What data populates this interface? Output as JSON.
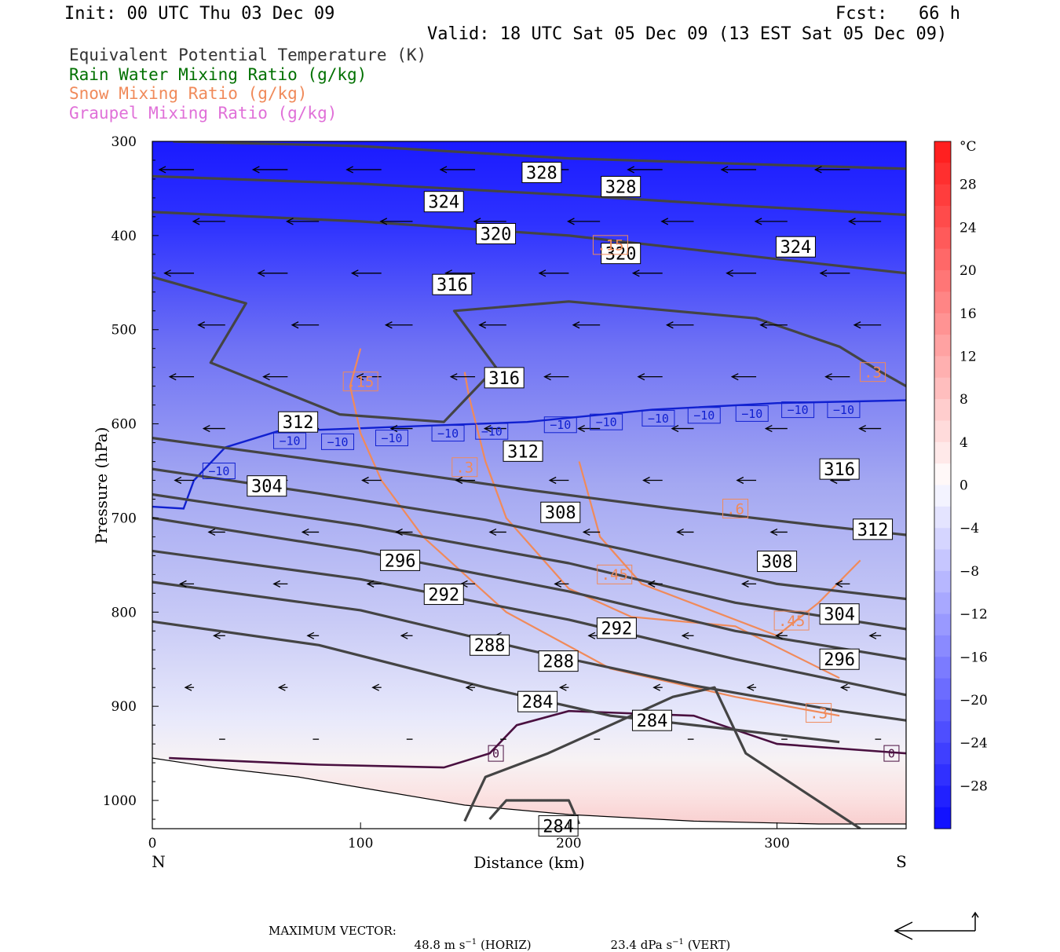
{
  "header": {
    "init": "Init: 00 UTC Thu 03 Dec 09",
    "fcst": "Fcst:   66 h",
    "valid": "Valid: 18 UTC Sat 05 Dec 09 (13 EST Sat 05 Dec 09)"
  },
  "legend": [
    {
      "label": "Equivalent Potential Temperature (K)",
      "color": "#333333"
    },
    {
      "label": "Rain Water Mixing Ratio (g/kg)",
      "color": "#007000"
    },
    {
      "label": "Snow Mixing Ratio (g/kg)",
      "color": "#f08a5a"
    },
    {
      "label": "Graupel Mixing Ratio (g/kg)",
      "color": "#e070d8"
    }
  ],
  "chart_data": {
    "type": "cross-section",
    "xlabel": "Distance (km)",
    "ylabel": "Pressure (hPa)",
    "xlim": [
      0,
      362
    ],
    "ylim": [
      300,
      1030
    ],
    "x_ticks": [
      0,
      100,
      200,
      300
    ],
    "y_ticks": [
      300,
      400,
      500,
      600,
      700,
      800,
      900,
      1000
    ],
    "x_end_labels": {
      "left": "N",
      "right": "S"
    },
    "colorbar": {
      "unit": "°C",
      "range": [
        -32,
        32
      ],
      "tick_labels": [
        28,
        24,
        20,
        16,
        12,
        8,
        4,
        0,
        -4,
        -8,
        -12,
        -16,
        -20,
        -24,
        -28
      ]
    },
    "theta_e": {
      "color": "#444444",
      "contours": [
        {
          "value": 328,
          "points": [
            [
              10,
              300
            ],
            [
              100,
              305
            ],
            [
              200,
              318
            ],
            [
              300,
              325
            ],
            [
              362,
              329
            ]
          ]
        },
        {
          "value": 324,
          "points": [
            [
              0,
              337
            ],
            [
              100,
              345
            ],
            [
              200,
              357
            ],
            [
              280,
              368
            ],
            [
              362,
              378
            ]
          ]
        },
        {
          "value": 320,
          "points": [
            [
              0,
              375
            ],
            [
              100,
              385
            ],
            [
              200,
              400
            ],
            [
              300,
              425
            ],
            [
              362,
              440
            ]
          ]
        },
        {
          "value": 316,
          "points": [
            [
              0,
              444
            ],
            [
              45,
              472
            ],
            [
              28,
              535
            ],
            [
              90,
              590
            ],
            [
              140,
              598
            ],
            [
              165,
              540
            ],
            [
              145,
              480
            ],
            [
              200,
              470
            ],
            [
              290,
              488
            ],
            [
              330,
              518
            ],
            [
              350,
              545
            ],
            [
              362,
              560
            ]
          ]
        },
        {
          "value": 312,
          "points": [
            [
              0,
              615
            ],
            [
              100,
              645
            ],
            [
              180,
              670
            ],
            [
              250,
              690
            ],
            [
              320,
              708
            ],
            [
              362,
              718
            ]
          ]
        },
        {
          "value": 308,
          "points": [
            [
              0,
              648
            ],
            [
              80,
              674
            ],
            [
              160,
              702
            ],
            [
              230,
              735
            ],
            [
              300,
              770
            ],
            [
              362,
              786
            ]
          ]
        },
        {
          "value": 304,
          "points": [
            [
              0,
              675
            ],
            [
              100,
              708
            ],
            [
              200,
              748
            ],
            [
              280,
              790
            ],
            [
              362,
              818
            ]
          ]
        },
        {
          "value": 300,
          "points": [
            [
              0,
              700
            ],
            [
              100,
              735
            ],
            [
              200,
              778
            ],
            [
              280,
              820
            ],
            [
              362,
              850
            ]
          ]
        },
        {
          "value": 296,
          "points": [
            [
              0,
              735
            ],
            [
              100,
              765
            ],
            [
              200,
              808
            ],
            [
              280,
              850
            ],
            [
              362,
              888
            ]
          ]
        },
        {
          "value": 292,
          "points": [
            [
              0,
              768
            ],
            [
              100,
              798
            ],
            [
              180,
              840
            ],
            [
              260,
              878
            ],
            [
              330,
              905
            ],
            [
              362,
              915
            ]
          ]
        },
        {
          "value": 288,
          "points": [
            [
              0,
              810
            ],
            [
              80,
              835
            ],
            [
              160,
              880
            ],
            [
              220,
              910
            ],
            [
              280,
              925
            ],
            [
              330,
              938
            ]
          ]
        },
        {
          "value": 284,
          "points": [
            [
              150,
              1022
            ],
            [
              160,
              975
            ],
            [
              190,
              950
            ],
            [
              220,
              920
            ],
            [
              250,
              890
            ],
            [
              270,
              880
            ],
            [
              285,
              950
            ],
            [
              340,
              1030
            ]
          ]
        },
        {
          "value": 284,
          "points": [
            [
              162,
              1020
            ],
            [
              170,
              1000
            ],
            [
              200,
              1000
            ],
            [
              205,
              1025
            ]
          ]
        }
      ]
    },
    "isotherm_0": {
      "color": "#4a1040",
      "points": [
        [
          8,
          955
        ],
        [
          80,
          962
        ],
        [
          140,
          965
        ],
        [
          162,
          950
        ],
        [
          175,
          920
        ],
        [
          200,
          905
        ],
        [
          260,
          910
        ],
        [
          300,
          940
        ],
        [
          362,
          950
        ]
      ]
    },
    "isotherm_m10": {
      "color": "#1020d0",
      "points": [
        [
          0,
          688
        ],
        [
          15,
          690
        ],
        [
          20,
          660
        ],
        [
          35,
          625
        ],
        [
          60,
          608
        ],
        [
          120,
          603
        ],
        [
          180,
          598
        ],
        [
          240,
          585
        ],
        [
          300,
          578
        ],
        [
          362,
          575
        ]
      ]
    },
    "snow_contours": [
      {
        "value": 0.15,
        "points": [
          [
            100,
            520
          ],
          [
            95,
            560
          ],
          [
            100,
            610
          ],
          [
            110,
            660
          ],
          [
            130,
            720
          ],
          [
            170,
            800
          ],
          [
            220,
            860
          ],
          [
            280,
            890
          ],
          [
            330,
            910
          ]
        ]
      },
      {
        "value": 0.3,
        "points": [
          [
            150,
            545
          ],
          [
            152,
            570
          ],
          [
            160,
            640
          ],
          [
            170,
            700
          ],
          [
            200,
            775
          ],
          [
            230,
            805
          ],
          [
            280,
            815
          ],
          [
            330,
            870
          ]
        ]
      },
      {
        "value": 0.45,
        "points": [
          [
            205,
            640
          ],
          [
            215,
            720
          ],
          [
            235,
            770
          ],
          [
            300,
            825
          ],
          [
            320,
            790
          ],
          [
            340,
            745
          ]
        ]
      }
    ],
    "labels": {
      "theta_e_labels": [
        {
          "text": "328",
          "x": 187,
          "y": 333
        },
        {
          "text": "328",
          "x": 225,
          "y": 348
        },
        {
          "text": "324",
          "x": 140,
          "y": 364
        },
        {
          "text": "324",
          "x": 309,
          "y": 412
        },
        {
          "text": "320",
          "x": 165,
          "y": 398
        },
        {
          "text": "320",
          "x": 225,
          "y": 419
        },
        {
          "text": "316",
          "x": 144,
          "y": 452
        },
        {
          "text": "316",
          "x": 169,
          "y": 551
        },
        {
          "text": "316",
          "x": 330,
          "y": 648
        },
        {
          "text": "312",
          "x": 70,
          "y": 598
        },
        {
          "text": "312",
          "x": 178,
          "y": 629
        },
        {
          "text": "312",
          "x": 346,
          "y": 712
        },
        {
          "text": "308",
          "x": 196,
          "y": 694
        },
        {
          "text": "308",
          "x": 300,
          "y": 746
        },
        {
          "text": "304",
          "x": 55,
          "y": 666
        },
        {
          "text": "304",
          "x": 330,
          "y": 802
        },
        {
          "text": "296",
          "x": 119,
          "y": 745
        },
        {
          "text": "296",
          "x": 330,
          "y": 850
        },
        {
          "text": "292",
          "x": 140,
          "y": 781
        },
        {
          "text": "292",
          "x": 223,
          "y": 817
        },
        {
          "text": "288",
          "x": 162,
          "y": 835
        },
        {
          "text": "288",
          "x": 195,
          "y": 852
        },
        {
          "text": "284",
          "x": 185,
          "y": 895
        },
        {
          "text": "284",
          "x": 240,
          "y": 915
        },
        {
          "text": "284",
          "x": 195,
          "y": 1027
        }
      ],
      "isotherm_labels": [
        {
          "text": "−10",
          "x": 32,
          "y": 650
        },
        {
          "text": "−10",
          "x": 66,
          "y": 618
        },
        {
          "text": "−10",
          "x": 89,
          "y": 619
        },
        {
          "text": "−10",
          "x": 115,
          "y": 615
        },
        {
          "text": "−10",
          "x": 142,
          "y": 610
        },
        {
          "text": "−10",
          "x": 163,
          "y": 608
        },
        {
          "text": "−10",
          "x": 196,
          "y": 601
        },
        {
          "text": "−10",
          "x": 218,
          "y": 598
        },
        {
          "text": "−10",
          "x": 243,
          "y": 594
        },
        {
          "text": "−10",
          "x": 265,
          "y": 591
        },
        {
          "text": "−10",
          "x": 288,
          "y": 589
        },
        {
          "text": "−10",
          "x": 310,
          "y": 585
        },
        {
          "text": "−10",
          "x": 332,
          "y": 585
        },
        {
          "text": "0",
          "x": 165,
          "y": 950
        },
        {
          "text": "0",
          "x": 355,
          "y": 950
        }
      ],
      "snow_labels": [
        {
          "text": ".15",
          "x": 100,
          "y": 555
        },
        {
          "text": ".15",
          "x": 220,
          "y": 410
        },
        {
          "text": ".3",
          "x": 150,
          "y": 646
        },
        {
          "text": ".3",
          "x": 346,
          "y": 545
        },
        {
          "text": ".3",
          "x": 320,
          "y": 907
        },
        {
          "text": ".6",
          "x": 280,
          "y": 690
        },
        {
          "text": ".45",
          "x": 222,
          "y": 760
        },
        {
          "text": ".45",
          "x": 307,
          "y": 809
        }
      ]
    }
  },
  "footer": {
    "max_vector_label": "MAXIMUM VECTOR:",
    "horiz_value": "48.8 m s",
    "horiz_exp": "−1",
    "horiz_tag": "(HORIZ)",
    "vert_value": "23.4 dPa s",
    "vert_exp": "−1",
    "vert_tag": "(VERT)"
  }
}
